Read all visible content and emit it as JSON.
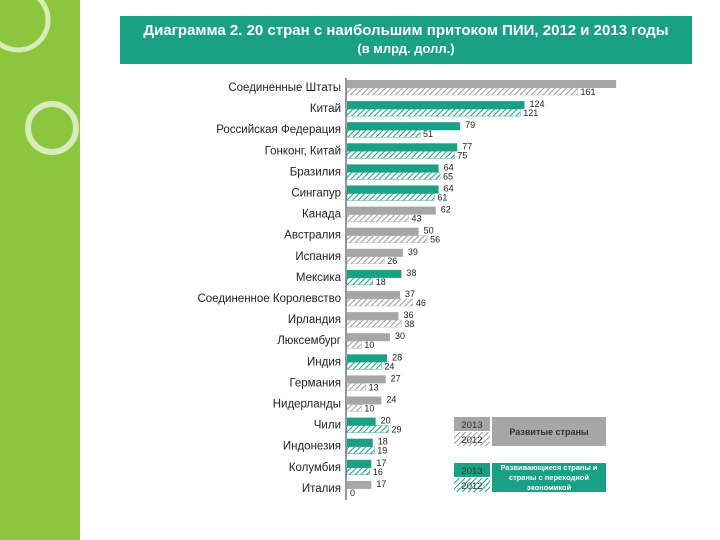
{
  "header": {
    "title": "Диаграмма 2. 20 стран с наибольшим притоком ПИИ, 2012 и 2013 годы",
    "subtitle": "(в млрд. долл.)"
  },
  "colors": {
    "developed": "#a6a6a6",
    "developing": "#1aa085",
    "band": "#8cc63f"
  },
  "chart_data": {
    "type": "bar",
    "orientation": "horizontal",
    "title": "Диаграмма 2. 20 стран с наибольшим притоком ПИИ, 2012 и 2013 годы",
    "subtitle": "(в млрд. долл.)",
    "xlim": [
      0,
      190
    ],
    "grid": false,
    "legend_position": "bottom-right",
    "categories": [
      "Соединенные Штаты",
      "Китай",
      "Российская Федерация",
      "Гонконг, Китай",
      "Бразилия",
      "Сингапур",
      "Канада",
      "Австралия",
      "Испания",
      "Мексика",
      "Соединенное Королевство",
      "Ирландия",
      "Люксембург",
      "Индия",
      "Германия",
      "Нидерланды",
      "Чили",
      "Индонезия",
      "Колумбия",
      "Италия"
    ],
    "groups": [
      "developed",
      "developing",
      "developing",
      "developing",
      "developing",
      "developing",
      "developed",
      "developed",
      "developed",
      "developing",
      "developed",
      "developed",
      "developed",
      "developing",
      "developed",
      "developed",
      "developing",
      "developing",
      "developing",
      "developed"
    ],
    "series": [
      {
        "name": "2013",
        "values": [
          188,
          124,
          79,
          77,
          64,
          64,
          62,
          50,
          39,
          38,
          37,
          36,
          30,
          28,
          27,
          24,
          20,
          18,
          17,
          17
        ]
      },
      {
        "name": "2012",
        "values": [
          161,
          121,
          51,
          75,
          65,
          61,
          43,
          56,
          26,
          18,
          46,
          38,
          10,
          24,
          13,
          10,
          29,
          19,
          16,
          0
        ]
      }
    ],
    "legend": {
      "developed_label": "Развитые страны",
      "developing_label": "Развивающиеся страны и страны с переходной экономикой",
      "year_2013": "2013",
      "year_2012": "2012"
    }
  }
}
